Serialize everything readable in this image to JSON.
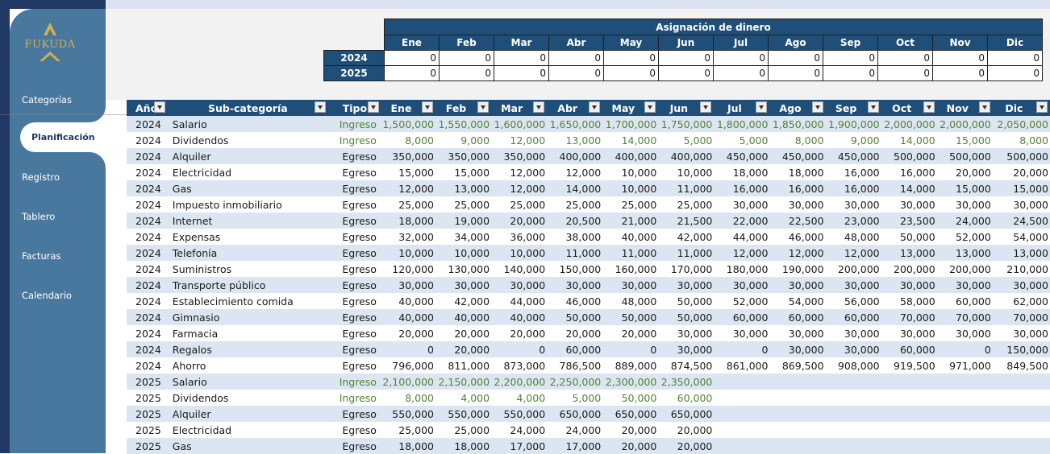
{
  "sidebar": {
    "logo_text": "FUKUDA",
    "items": [
      {
        "label": "Categorías"
      },
      {
        "label": "Planificación"
      },
      {
        "label": "Registro"
      },
      {
        "label": "Tablero"
      },
      {
        "label": "Facturas"
      },
      {
        "label": "Calendario"
      }
    ],
    "active_index": 1
  },
  "allocation": {
    "title": "Asignación de dinero",
    "months": [
      "Ene",
      "Feb",
      "Mar",
      "Abr",
      "May",
      "Jun",
      "Jul",
      "Ago",
      "Sep",
      "Oct",
      "Nov",
      "Dic"
    ],
    "rows": [
      {
        "year": "2024",
        "values": [
          "0",
          "0",
          "0",
          "0",
          "0",
          "0",
          "0",
          "0",
          "0",
          "0",
          "0",
          "0"
        ]
      },
      {
        "year": "2025",
        "values": [
          "0",
          "0",
          "0",
          "0",
          "0",
          "0",
          "0",
          "0",
          "0",
          "0",
          "0",
          "0"
        ]
      }
    ]
  },
  "table": {
    "headers": [
      "Año",
      "Sub-categoría",
      "Tipo",
      "Ene",
      "Feb",
      "Mar",
      "Abr",
      "May",
      "Jun",
      "Jul",
      "Ago",
      "Sep",
      "Oct",
      "Nov",
      "Dic"
    ],
    "rows": [
      [
        "2024",
        "Salario",
        "Ingreso",
        "1,500,000",
        "1,550,000",
        "1,600,000",
        "1,650,000",
        "1,700,000",
        "1,750,000",
        "1,800,000",
        "1,850,000",
        "1,900,000",
        "2,000,000",
        "2,000,000",
        "2,050,000"
      ],
      [
        "2024",
        "Dividendos",
        "Ingreso",
        "8,000",
        "9,000",
        "12,000",
        "13,000",
        "14,000",
        "5,000",
        "5,000",
        "8,000",
        "9,000",
        "14,000",
        "15,000",
        "8,000"
      ],
      [
        "2024",
        "Alquiler",
        "Egreso",
        "350,000",
        "350,000",
        "350,000",
        "400,000",
        "400,000",
        "400,000",
        "450,000",
        "450,000",
        "450,000",
        "500,000",
        "500,000",
        "500,000"
      ],
      [
        "2024",
        "Electricidad",
        "Egreso",
        "15,000",
        "15,000",
        "12,000",
        "12,000",
        "10,000",
        "10,000",
        "18,000",
        "18,000",
        "16,000",
        "16,000",
        "20,000",
        "20,000"
      ],
      [
        "2024",
        "Gas",
        "Egreso",
        "12,000",
        "13,000",
        "12,000",
        "14,000",
        "10,000",
        "11,000",
        "16,000",
        "16,000",
        "16,000",
        "14,000",
        "15,000",
        "15,000"
      ],
      [
        "2024",
        "Impuesto inmobiliario",
        "Egreso",
        "25,000",
        "25,000",
        "25,000",
        "25,000",
        "25,000",
        "25,000",
        "30,000",
        "30,000",
        "30,000",
        "30,000",
        "30,000",
        "30,000"
      ],
      [
        "2024",
        "Internet",
        "Egreso",
        "18,000",
        "19,000",
        "20,000",
        "20,500",
        "21,000",
        "21,500",
        "22,000",
        "22,500",
        "23,000",
        "23,500",
        "24,000",
        "24,500"
      ],
      [
        "2024",
        "Expensas",
        "Egreso",
        "32,000",
        "34,000",
        "36,000",
        "38,000",
        "40,000",
        "42,000",
        "44,000",
        "46,000",
        "48,000",
        "50,000",
        "52,000",
        "54,000"
      ],
      [
        "2024",
        "Telefonía",
        "Egreso",
        "10,000",
        "10,000",
        "10,000",
        "11,000",
        "11,000",
        "11,000",
        "12,000",
        "12,000",
        "12,000",
        "13,000",
        "13,000",
        "13,000"
      ],
      [
        "2024",
        "Suministros",
        "Egreso",
        "120,000",
        "130,000",
        "140,000",
        "150,000",
        "160,000",
        "170,000",
        "180,000",
        "190,000",
        "200,000",
        "200,000",
        "200,000",
        "210,000"
      ],
      [
        "2024",
        "Transporte público",
        "Egreso",
        "30,000",
        "30,000",
        "30,000",
        "30,000",
        "30,000",
        "30,000",
        "30,000",
        "30,000",
        "30,000",
        "30,000",
        "30,000",
        "30,000"
      ],
      [
        "2024",
        "Establecimiento comida",
        "Egreso",
        "40,000",
        "42,000",
        "44,000",
        "46,000",
        "48,000",
        "50,000",
        "52,000",
        "54,000",
        "56,000",
        "58,000",
        "60,000",
        "62,000"
      ],
      [
        "2024",
        "Gimnasio",
        "Egreso",
        "40,000",
        "40,000",
        "40,000",
        "50,000",
        "50,000",
        "50,000",
        "60,000",
        "60,000",
        "60,000",
        "70,000",
        "70,000",
        "70,000"
      ],
      [
        "2024",
        "Farmacia",
        "Egreso",
        "20,000",
        "20,000",
        "20,000",
        "20,000",
        "20,000",
        "30,000",
        "30,000",
        "30,000",
        "30,000",
        "30,000",
        "30,000",
        "30,000"
      ],
      [
        "2024",
        "Regalos",
        "Egreso",
        "0",
        "20,000",
        "0",
        "60,000",
        "0",
        "30,000",
        "0",
        "30,000",
        "30,000",
        "60,000",
        "0",
        "150,000"
      ],
      [
        "2024",
        "Ahorro",
        "Egreso",
        "796,000",
        "811,000",
        "873,000",
        "786,500",
        "889,000",
        "874,500",
        "861,000",
        "869,500",
        "908,000",
        "919,500",
        "971,000",
        "849,500"
      ],
      [
        "2025",
        "Salario",
        "Ingreso",
        "2,100,000",
        "2,150,000",
        "2,200,000",
        "2,250,000",
        "2,300,000",
        "2,350,000",
        "",
        "",
        "",
        "",
        "",
        ""
      ],
      [
        "2025",
        "Dividendos",
        "Ingreso",
        "8,000",
        "4,000",
        "4,000",
        "5,000",
        "50,000",
        "60,000",
        "",
        "",
        "",
        "",
        "",
        ""
      ],
      [
        "2025",
        "Alquiler",
        "Egreso",
        "550,000",
        "550,000",
        "550,000",
        "650,000",
        "650,000",
        "650,000",
        "",
        "",
        "",
        "",
        "",
        ""
      ],
      [
        "2025",
        "Electricidad",
        "Egreso",
        "25,000",
        "25,000",
        "24,000",
        "24,000",
        "20,000",
        "20,000",
        "",
        "",
        "",
        "",
        "",
        ""
      ],
      [
        "2025",
        "Gas",
        "Egreso",
        "18,000",
        "18,000",
        "17,000",
        "17,000",
        "20,000",
        "20,000",
        "",
        "",
        "",
        "",
        "",
        ""
      ]
    ]
  },
  "colors": {
    "header_bg": "#1f4e79",
    "sidebar_bg": "#49789f",
    "income_text": "#548235",
    "band_row": "#dce6f2"
  }
}
